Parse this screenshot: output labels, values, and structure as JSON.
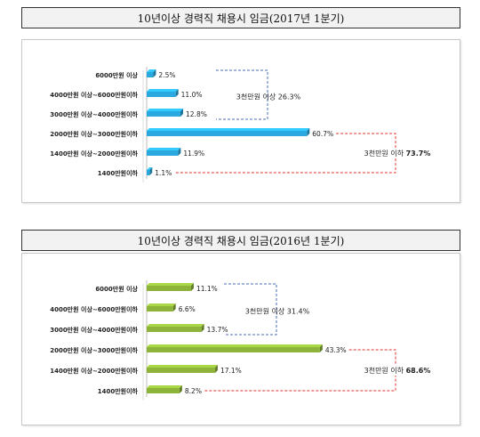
{
  "chart_data": [
    {
      "type": "bar",
      "title": "10년이상 경력직 채용시 임금(2017년 1분기)",
      "categories": [
        "6000만원 이상",
        "4000만원 이상~6000만원이하",
        "3000만원 이상~4000만원이하",
        "2000만원 이상~3000만원이하",
        "1400만원 이상~2000만원이하",
        "1400만원이하"
      ],
      "values": [
        2.5,
        11.0,
        12.8,
        60.7,
        11.9,
        1.1
      ],
      "value_labels": [
        "2.5%",
        "11.0%",
        "12.8%",
        "60.7%",
        "11.9%",
        "1.1%"
      ],
      "color": "#29a9e0",
      "annotations": [
        {
          "label": "3천만원 이상",
          "value": "26.3%",
          "color": "#4a6fb5"
        },
        {
          "label": "3천만원 이하",
          "value": "73.7%",
          "color": "#e0312b"
        }
      ]
    },
    {
      "type": "bar",
      "title": "10년이상 경력직 채용시 임금(2016년 1분기)",
      "categories": [
        "6000만원 이상",
        "4000만원 이상~6000만원이하",
        "3000만원 이상~4000만원이하",
        "2000만원 이상~3000만원이하",
        "1400만원 이상~2000만원이하",
        "1400만원이하"
      ],
      "values": [
        11.1,
        6.6,
        13.7,
        43.3,
        17.1,
        8.2
      ],
      "value_labels": [
        "11.1%",
        "6.6%",
        "13.7%",
        "43.3%",
        "17.1%",
        "8.2%"
      ],
      "color": "#8db33a",
      "annotations": [
        {
          "label": "3천만원 이상",
          "value": "31.4%",
          "color": "#4a6fb5"
        },
        {
          "label": "3천만원 이하",
          "value": "68.6%",
          "color": "#e0312b"
        }
      ]
    }
  ]
}
